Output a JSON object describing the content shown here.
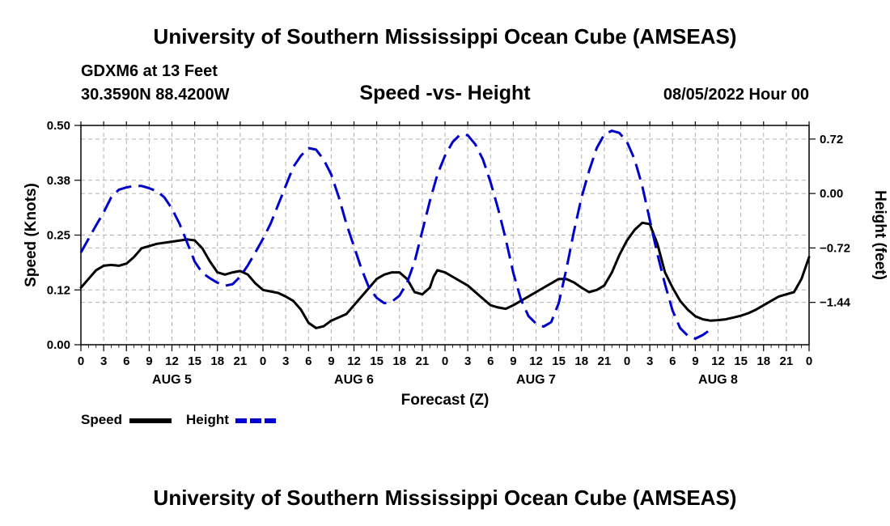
{
  "header": {
    "title": "University of Southern Mississippi Ocean Cube (AMSEAS)",
    "station": "GDXM6 at 13 Feet",
    "location": "30.3590N  88.4200W",
    "subtitle": "Speed -vs- Height",
    "datetime": "08/05/2022 Hour 00"
  },
  "footer": {
    "title": "University of Southern Mississippi Ocean Cube (AMSEAS)"
  },
  "legend": {
    "speed_label": "Speed",
    "height_label": "Height"
  },
  "colors": {
    "speed": "#000000",
    "height": "#0000cc",
    "grid": "#b0b0b0"
  },
  "chart_data": {
    "type": "line",
    "title": "Speed -vs- Height",
    "xlabel": "Forecast (Z)",
    "ylabel": "Speed (Knots)",
    "y2label": "Height (feet)",
    "xlim": [
      0,
      96
    ],
    "ylim": [
      0,
      0.5
    ],
    "y2lim": [
      -2.0,
      0.9
    ],
    "x_ticks": [
      0,
      3,
      6,
      9,
      12,
      15,
      18,
      21,
      24,
      27,
      30,
      33,
      36,
      39,
      42,
      45,
      48,
      51,
      54,
      57,
      60,
      63,
      66,
      69,
      72,
      75,
      78,
      81,
      84,
      87,
      90,
      93,
      96
    ],
    "x_tick_labels": [
      "0",
      "3",
      "6",
      "9",
      "12",
      "15",
      "18",
      "21",
      "0",
      "3",
      "6",
      "9",
      "12",
      "15",
      "18",
      "21",
      "0",
      "3",
      "6",
      "9",
      "12",
      "15",
      "18",
      "21",
      "0",
      "3",
      "6",
      "9",
      "12",
      "15",
      "18",
      "21",
      "0"
    ],
    "y_ticks": [
      0,
      0.125,
      0.25,
      0.375,
      0.5
    ],
    "y_tick_labels": [
      "0.00",
      "0.12",
      "0.25",
      "0.38",
      "0.50"
    ],
    "y2_ticks": [
      0.72,
      0.0,
      -0.72,
      -1.44
    ],
    "y2_tick_labels": [
      "0.72",
      "0.00",
      "−0.72",
      "−1.44"
    ],
    "day_labels": [
      {
        "x": 12,
        "label": "AUG 5"
      },
      {
        "x": 36,
        "label": "AUG 6"
      },
      {
        "x": 60,
        "label": "AUG 7"
      },
      {
        "x": 84,
        "label": "AUG 8"
      }
    ],
    "series": [
      {
        "name": "Speed",
        "axis": "left",
        "style": "solid",
        "points": [
          [
            0,
            0.13
          ],
          [
            1,
            0.15
          ],
          [
            2,
            0.17
          ],
          [
            3,
            0.18
          ],
          [
            4,
            0.182
          ],
          [
            5,
            0.18
          ],
          [
            6,
            0.185
          ],
          [
            7,
            0.2
          ],
          [
            8,
            0.22
          ],
          [
            10,
            0.23
          ],
          [
            12,
            0.235
          ],
          [
            14,
            0.24
          ],
          [
            15,
            0.238
          ],
          [
            16,
            0.22
          ],
          [
            17,
            0.19
          ],
          [
            18,
            0.165
          ],
          [
            19,
            0.16
          ],
          [
            20,
            0.165
          ],
          [
            21,
            0.168
          ],
          [
            22,
            0.16
          ],
          [
            23,
            0.14
          ],
          [
            24,
            0.125
          ],
          [
            26,
            0.118
          ],
          [
            27,
            0.11
          ],
          [
            28,
            0.1
          ],
          [
            29,
            0.08
          ],
          [
            30,
            0.05
          ],
          [
            31,
            0.038
          ],
          [
            32,
            0.042
          ],
          [
            33,
            0.055
          ],
          [
            35,
            0.07
          ],
          [
            36,
            0.09
          ],
          [
            37,
            0.11
          ],
          [
            38,
            0.13
          ],
          [
            39,
            0.15
          ],
          [
            40,
            0.16
          ],
          [
            41,
            0.165
          ],
          [
            42,
            0.165
          ],
          [
            43,
            0.15
          ],
          [
            44,
            0.12
          ],
          [
            45,
            0.115
          ],
          [
            46,
            0.13
          ],
          [
            46.5,
            0.155
          ],
          [
            47,
            0.17
          ],
          [
            48,
            0.165
          ],
          [
            49,
            0.155
          ],
          [
            50,
            0.145
          ],
          [
            51,
            0.135
          ],
          [
            52,
            0.12
          ],
          [
            53,
            0.105
          ],
          [
            54,
            0.09
          ],
          [
            55,
            0.085
          ],
          [
            56,
            0.082
          ],
          [
            57,
            0.09
          ],
          [
            59,
            0.11
          ],
          [
            61,
            0.13
          ],
          [
            62,
            0.14
          ],
          [
            63,
            0.15
          ],
          [
            64,
            0.15
          ],
          [
            65,
            0.142
          ],
          [
            66,
            0.13
          ],
          [
            67,
            0.12
          ],
          [
            68,
            0.125
          ],
          [
            69,
            0.135
          ],
          [
            70,
            0.165
          ],
          [
            71,
            0.205
          ],
          [
            72,
            0.238
          ],
          [
            73,
            0.262
          ],
          [
            74,
            0.278
          ],
          [
            75,
            0.275
          ],
          [
            76,
            0.23
          ],
          [
            77,
            0.165
          ],
          [
            78,
            0.13
          ],
          [
            79,
            0.1
          ],
          [
            80,
            0.08
          ],
          [
            81,
            0.065
          ],
          [
            82,
            0.058
          ],
          [
            83,
            0.055
          ],
          [
            84,
            0.056
          ],
          [
            85,
            0.058
          ],
          [
            86,
            0.062
          ],
          [
            87,
            0.066
          ],
          [
            88,
            0.072
          ],
          [
            89,
            0.08
          ],
          [
            90,
            0.09
          ],
          [
            91,
            0.1
          ],
          [
            92,
            0.11
          ],
          [
            93,
            0.115
          ],
          [
            94,
            0.12
          ],
          [
            95,
            0.15
          ],
          [
            96,
            0.2
          ]
        ]
      },
      {
        "name": "Height",
        "axis": "right",
        "style": "dashed",
        "points": [
          [
            0,
            -0.78
          ],
          [
            1,
            -0.6
          ],
          [
            2,
            -0.42
          ],
          [
            3,
            -0.25
          ],
          [
            4,
            -0.05
          ],
          [
            5,
            0.05
          ],
          [
            6,
            0.08
          ],
          [
            7,
            0.1
          ],
          [
            8,
            0.1
          ],
          [
            9,
            0.07
          ],
          [
            10,
            0.03
          ],
          [
            11,
            -0.05
          ],
          [
            12,
            -0.2
          ],
          [
            13,
            -0.4
          ],
          [
            14,
            -0.65
          ],
          [
            15,
            -0.9
          ],
          [
            16,
            -1.05
          ],
          [
            17,
            -1.12
          ],
          [
            18,
            -1.18
          ],
          [
            19,
            -1.22
          ],
          [
            20,
            -1.2
          ],
          [
            21,
            -1.1
          ],
          [
            22,
            -0.95
          ],
          [
            23,
            -0.78
          ],
          [
            24,
            -0.6
          ],
          [
            25,
            -0.4
          ],
          [
            26,
            -0.15
          ],
          [
            27,
            0.1
          ],
          [
            28,
            0.35
          ],
          [
            29,
            0.5
          ],
          [
            30,
            0.6
          ],
          [
            31,
            0.58
          ],
          [
            32,
            0.45
          ],
          [
            33,
            0.25
          ],
          [
            34,
            -0.05
          ],
          [
            35,
            -0.4
          ],
          [
            36,
            -0.7
          ],
          [
            37,
            -1.0
          ],
          [
            38,
            -1.25
          ],
          [
            39,
            -1.38
          ],
          [
            40,
            -1.45
          ],
          [
            41,
            -1.43
          ],
          [
            42,
            -1.35
          ],
          [
            43,
            -1.18
          ],
          [
            44,
            -0.9
          ],
          [
            45,
            -0.5
          ],
          [
            46,
            -0.1
          ],
          [
            47,
            0.25
          ],
          [
            48,
            0.5
          ],
          [
            49,
            0.68
          ],
          [
            50,
            0.78
          ],
          [
            51,
            0.77
          ],
          [
            52,
            0.65
          ],
          [
            53,
            0.45
          ],
          [
            54,
            0.15
          ],
          [
            55,
            -0.2
          ],
          [
            56,
            -0.6
          ],
          [
            57,
            -1.05
          ],
          [
            58,
            -1.4
          ],
          [
            59,
            -1.62
          ],
          [
            60,
            -1.72
          ],
          [
            61,
            -1.76
          ],
          [
            62,
            -1.7
          ],
          [
            63,
            -1.45
          ],
          [
            64,
            -1.0
          ],
          [
            65,
            -0.5
          ],
          [
            66,
            -0.05
          ],
          [
            67,
            0.3
          ],
          [
            68,
            0.6
          ],
          [
            69,
            0.78
          ],
          [
            70,
            0.83
          ],
          [
            71,
            0.8
          ],
          [
            72,
            0.68
          ],
          [
            73,
            0.45
          ],
          [
            74,
            0.1
          ],
          [
            75,
            -0.35
          ],
          [
            76,
            -0.8
          ],
          [
            77,
            -1.2
          ],
          [
            78,
            -1.55
          ],
          [
            79,
            -1.78
          ],
          [
            80,
            -1.88
          ],
          [
            81,
            -1.92
          ],
          [
            82,
            -1.87
          ],
          [
            83,
            -1.8
          ]
        ]
      }
    ]
  }
}
